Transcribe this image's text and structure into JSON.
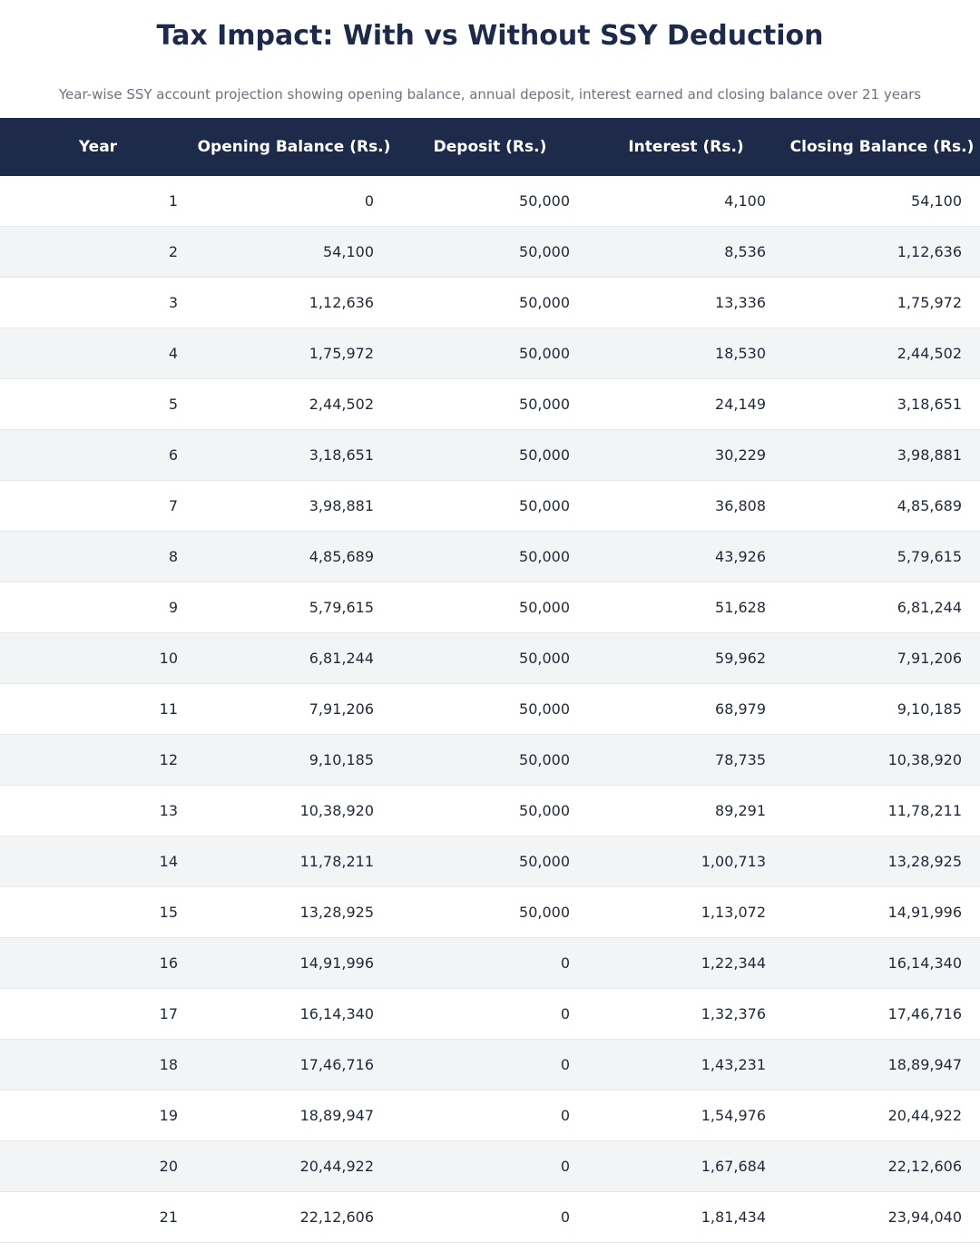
{
  "header": {
    "title": "Tax Impact: With vs Without SSY Deduction",
    "subtitle": "Year-wise SSY account projection showing opening balance, annual deposit, interest earned and closing balance over 21 years"
  },
  "table": {
    "columns": [
      "Year",
      "Opening Balance (Rs.)",
      "Deposit (Rs.)",
      "Interest (Rs.)",
      "Closing Balance (Rs.)"
    ],
    "rows": [
      [
        "1",
        "0",
        "50,000",
        "4,100",
        "54,100"
      ],
      [
        "2",
        "54,100",
        "50,000",
        "8,536",
        "1,12,636"
      ],
      [
        "3",
        "1,12,636",
        "50,000",
        "13,336",
        "1,75,972"
      ],
      [
        "4",
        "1,75,972",
        "50,000",
        "18,530",
        "2,44,502"
      ],
      [
        "5",
        "2,44,502",
        "50,000",
        "24,149",
        "3,18,651"
      ],
      [
        "6",
        "3,18,651",
        "50,000",
        "30,229",
        "3,98,881"
      ],
      [
        "7",
        "3,98,881",
        "50,000",
        "36,808",
        "4,85,689"
      ],
      [
        "8",
        "4,85,689",
        "50,000",
        "43,926",
        "5,79,615"
      ],
      [
        "9",
        "5,79,615",
        "50,000",
        "51,628",
        "6,81,244"
      ],
      [
        "10",
        "6,81,244",
        "50,000",
        "59,962",
        "7,91,206"
      ],
      [
        "11",
        "7,91,206",
        "50,000",
        "68,979",
        "9,10,185"
      ],
      [
        "12",
        "9,10,185",
        "50,000",
        "78,735",
        "10,38,920"
      ],
      [
        "13",
        "10,38,920",
        "50,000",
        "89,291",
        "11,78,211"
      ],
      [
        "14",
        "11,78,211",
        "50,000",
        "1,00,713",
        "13,28,925"
      ],
      [
        "15",
        "13,28,925",
        "50,000",
        "1,13,072",
        "14,91,996"
      ],
      [
        "16",
        "14,91,996",
        "0",
        "1,22,344",
        "16,14,340"
      ],
      [
        "17",
        "16,14,340",
        "0",
        "1,32,376",
        "17,46,716"
      ],
      [
        "18",
        "17,46,716",
        "0",
        "1,43,231",
        "18,89,947"
      ],
      [
        "19",
        "18,89,947",
        "0",
        "1,54,976",
        "20,44,922"
      ],
      [
        "20",
        "20,44,922",
        "0",
        "1,67,684",
        "22,12,606"
      ],
      [
        "21",
        "22,12,606",
        "0",
        "1,81,434",
        "23,94,040"
      ]
    ]
  }
}
